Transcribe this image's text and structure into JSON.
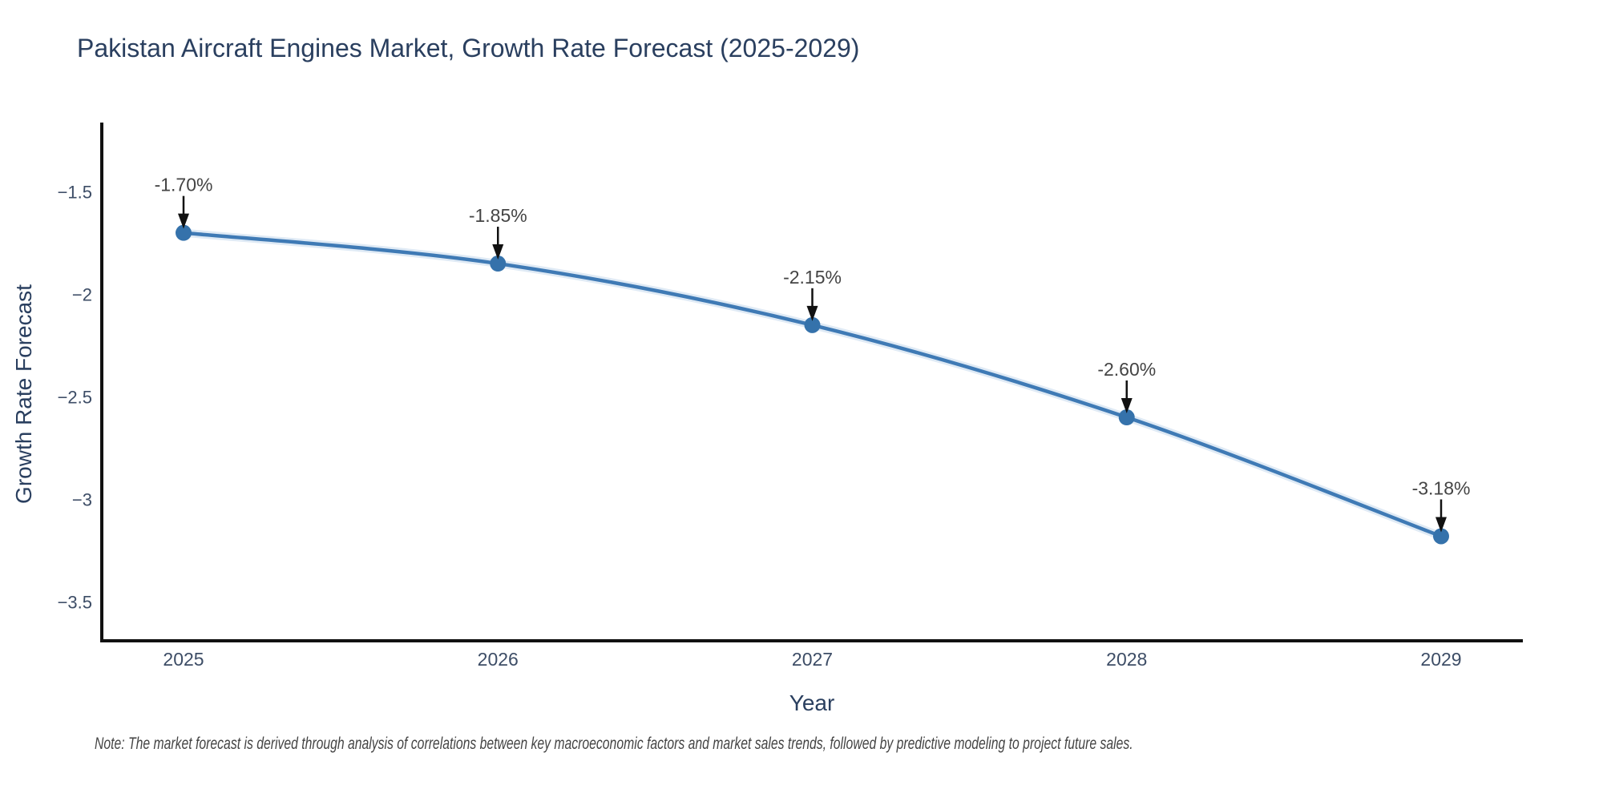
{
  "title": "Pakistan Aircraft Engines Market, Growth Rate Forecast (2025-2029)",
  "note": "Note: The market forecast is derived through analysis of correlations between key macroeconomic factors and market sales trends, followed by predictive modeling to project future sales.",
  "colors": {
    "title_text": "#2a3f5f",
    "tick_text": "#3d4d66",
    "axis_line": "#111111",
    "line": "#3f7ab5",
    "line_halo": "#aecbe6",
    "marker": "#3572ab",
    "arrow": "#111111",
    "annotation_text": "#444444",
    "note_text": "#444444",
    "background": "#ffffff"
  },
  "chart_data": {
    "type": "line",
    "title": "Pakistan Aircraft Engines Market, Growth Rate Forecast (2025-2029)",
    "xlabel": "Year",
    "ylabel": "Growth Rate Forecast",
    "categories": [
      "2025",
      "2026",
      "2027",
      "2028",
      "2029"
    ],
    "series": [
      {
        "name": "Growth Rate Forecast",
        "values": [
          -1.7,
          -1.85,
          -2.15,
          -2.6,
          -3.18
        ]
      }
    ],
    "point_labels": [
      "-1.70%",
      "-1.85%",
      "-2.15%",
      "-2.60%",
      "-3.18%"
    ],
    "yticks": [
      -1.5,
      -2,
      -2.5,
      -3,
      -3.5
    ],
    "ytick_labels": [
      "−1.5",
      "−2",
      "−2.5",
      "−3",
      "−3.5"
    ],
    "ylim": [
      -3.69,
      -1.17
    ],
    "grid": false,
    "legend": "none",
    "annotations_have_arrows": true,
    "line_shape": "spline"
  }
}
